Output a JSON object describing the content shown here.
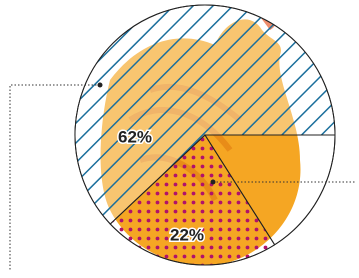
{
  "chart_data": {
    "type": "pie",
    "values": [
      62,
      22,
      16
    ],
    "value_labels": [
      "62%",
      "22%",
      null
    ],
    "colors": [
      "#1b6f9c",
      "#b0126a",
      null
    ]
  }
}
